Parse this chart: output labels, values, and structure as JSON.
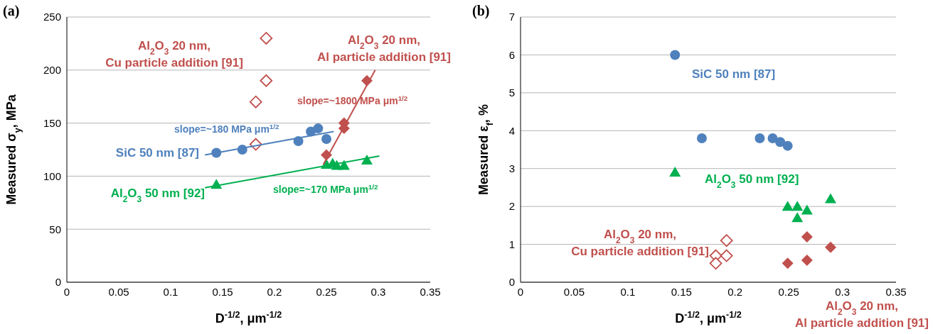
{
  "chart_data": [
    {
      "type": "scatter",
      "title": "(a)",
      "xlabel": "D$^{-1/2}$, μm$^{-1/2}$",
      "ylabel": "Measured σ$_{y}$, MPa",
      "xlim": [
        0,
        0.35
      ],
      "xticks": [
        0,
        0.05,
        0.1,
        0.15,
        0.2,
        0.25,
        0.3,
        0.35
      ],
      "ylim": [
        0,
        250
      ],
      "yticks": [
        0,
        50,
        100,
        150,
        200,
        250
      ],
      "grid": "y",
      "annotations": [
        "slope=~180 MPa μm$^{1/2}$",
        "slope=~1800 MPa μm$^{1/2}$",
        "slope=~170 MPa μm$^{1/2}$"
      ],
      "series": [
        {
          "name": "SiC 50 nm [87]",
          "color": "#4f81bd",
          "marker": "circle",
          "x": [
            0.144,
            0.169,
            0.223,
            0.235,
            0.242,
            0.25
          ],
          "values": [
            122,
            125,
            133,
            142,
            145,
            135
          ]
        },
        {
          "name": "Al$_{2}$O$_{3}$ 50 nm [92]",
          "color": "#00b050",
          "marker": "triangle",
          "x": [
            0.144,
            0.25,
            0.256,
            0.26,
            0.267,
            0.289
          ],
          "values": [
            92,
            111,
            112,
            110,
            110,
            115
          ]
        },
        {
          "name": "Al$_{2}$O$_{3}$ 20 nm, Al particle addition [91]",
          "color": "#c0504d",
          "marker": "diamond",
          "x": [
            0.25,
            0.267,
            0.267,
            0.289
          ],
          "values": [
            120,
            145,
            150,
            190
          ]
        },
        {
          "name": "Al$_{2}$O$_{3}$ 20 nm, Cu particle addition [91]",
          "color": "#c0504d",
          "marker": "diamond",
          "x": [
            0.192,
            0.192,
            0.182,
            0.182
          ],
          "values": [
            230,
            190,
            170,
            130
          ]
        },
        {
          "type": "line",
          "color": "#4f81bd",
          "marker": "none",
          "x": [
            0.133,
            0.257
          ],
          "values": [
            120,
            142
          ]
        },
        {
          "type": "line",
          "color": "#00b050",
          "marker": "none",
          "x": [
            0.133,
            0.301
          ],
          "values": [
            89,
            119
          ]
        },
        {
          "type": "line",
          "color": "#c0504d",
          "marker": "none",
          "x": [
            0.247,
            0.297
          ],
          "values": [
            111,
            200
          ]
        }
      ]
    },
    {
      "type": "scatter",
      "title": "(b)",
      "xlabel": "D$^{-1/2}$, μm$^{-1/2}$",
      "ylabel": "Measured ε$_{f}$, %",
      "xlim": [
        0,
        0.35
      ],
      "xticks": [
        0,
        0.05,
        0.1,
        0.15,
        0.2,
        0.25,
        0.3,
        0.35
      ],
      "ylim": [
        0,
        7
      ],
      "yticks": [
        0,
        1,
        2,
        3,
        4,
        5,
        6,
        7
      ],
      "grid": "y",
      "series": [
        {
          "name": "SiC 50 nm [87]",
          "color": "#4f81bd",
          "marker": "circle",
          "x": [
            0.144,
            0.169,
            0.223,
            0.235,
            0.242,
            0.249
          ],
          "values": [
            6.0,
            3.8,
            3.8,
            3.8,
            3.7,
            3.6
          ]
        },
        {
          "name": "Al$_{2}$O$_{3}$ 50 nm [92]",
          "color": "#00b050",
          "marker": "triangle",
          "x": [
            0.144,
            0.249,
            0.258,
            0.258,
            0.267,
            0.289
          ],
          "values": [
            2.9,
            2.0,
            2.0,
            1.7,
            1.9,
            2.2
          ]
        },
        {
          "name": "Al$_{2}$O$_{3}$ 20 nm, Al particle addition [91]",
          "color": "#c0504d",
          "marker": "diamond",
          "x": [
            0.249,
            0.267,
            0.267,
            0.289
          ],
          "values": [
            0.5,
            1.2,
            0.58,
            0.92
          ]
        },
        {
          "name": "Al$_{2}$O$_{3}$ 20 nm, Cu particle addition [91]",
          "color": "#c0504d",
          "marker": "diamond",
          "x": [
            0.192,
            0.182,
            0.192,
            0.182
          ],
          "values": [
            1.1,
            0.7,
            0.7,
            0.5
          ]
        }
      ]
    }
  ]
}
